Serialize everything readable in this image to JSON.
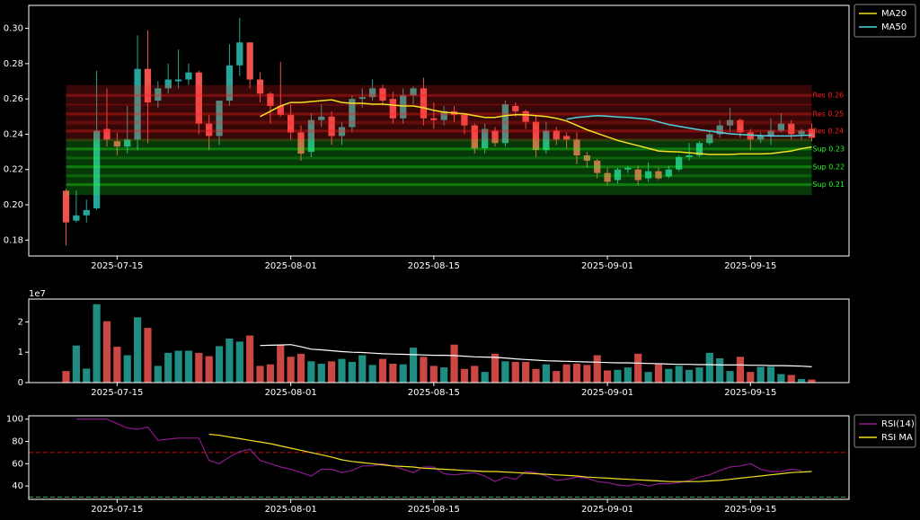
{
  "chart_data": [
    {
      "type": "candlestick",
      "x": [
        "2025-07-10",
        "2025-07-11",
        "2025-07-12",
        "2025-07-13",
        "2025-07-14",
        "2025-07-15",
        "2025-07-16",
        "2025-07-17",
        "2025-07-18",
        "2025-07-19",
        "2025-07-20",
        "2025-07-21",
        "2025-07-22",
        "2025-07-23",
        "2025-07-24",
        "2025-07-25",
        "2025-07-26",
        "2025-07-27",
        "2025-07-28",
        "2025-07-29",
        "2025-07-30",
        "2025-07-31",
        "2025-08-01",
        "2025-08-02",
        "2025-08-03",
        "2025-08-04",
        "2025-08-05",
        "2025-08-06",
        "2025-08-07",
        "2025-08-08",
        "2025-08-09",
        "2025-08-10",
        "2025-08-11",
        "2025-08-12",
        "2025-08-13",
        "2025-08-14",
        "2025-08-15",
        "2025-08-16",
        "2025-08-17",
        "2025-08-18",
        "2025-08-19",
        "2025-08-20",
        "2025-08-21",
        "2025-08-22",
        "2025-08-23",
        "2025-08-24",
        "2025-08-25",
        "2025-08-26",
        "2025-08-27",
        "2025-08-28",
        "2025-08-29",
        "2025-08-30",
        "2025-08-31",
        "2025-09-01",
        "2025-09-02",
        "2025-09-03",
        "2025-09-04",
        "2025-09-05",
        "2025-09-06",
        "2025-09-07",
        "2025-09-08",
        "2025-09-09",
        "2025-09-10",
        "2025-09-11",
        "2025-09-12",
        "2025-09-13",
        "2025-09-14",
        "2025-09-15",
        "2025-09-16",
        "2025-09-17",
        "2025-09-18",
        "2025-09-19",
        "2025-09-20",
        "2025-09-21"
      ],
      "open": [
        0.208,
        0.191,
        0.194,
        0.198,
        0.243,
        0.236,
        0.233,
        0.237,
        0.277,
        0.259,
        0.266,
        0.27,
        0.271,
        0.275,
        0.246,
        0.239,
        0.259,
        0.279,
        0.292,
        0.271,
        0.263,
        0.256,
        0.251,
        0.241,
        0.23,
        0.248,
        0.25,
        0.239,
        0.244,
        0.26,
        0.261,
        0.266,
        0.26,
        0.249,
        0.262,
        0.266,
        0.249,
        0.248,
        0.253,
        0.251,
        0.245,
        0.232,
        0.242,
        0.235,
        0.256,
        0.253,
        0.247,
        0.231,
        0.242,
        0.239,
        0.237,
        0.228,
        0.225,
        0.218,
        0.214,
        0.22,
        0.22,
        0.215,
        0.219,
        0.216,
        0.22,
        0.227,
        0.228,
        0.235,
        0.24,
        0.245,
        0.248,
        0.241,
        0.237,
        0.239,
        0.242,
        0.246,
        0.24,
        0.243
      ],
      "high": [
        0.209,
        0.208,
        0.203,
        0.276,
        0.266,
        0.241,
        0.256,
        0.296,
        0.299,
        0.27,
        0.28,
        0.288,
        0.28,
        0.276,
        0.251,
        0.259,
        0.291,
        0.306,
        0.292,
        0.275,
        0.264,
        0.281,
        0.257,
        0.245,
        0.252,
        0.257,
        0.253,
        0.247,
        0.262,
        0.266,
        0.271,
        0.268,
        0.264,
        0.266,
        0.267,
        0.272,
        0.258,
        0.256,
        0.256,
        0.252,
        0.246,
        0.246,
        0.244,
        0.259,
        0.258,
        0.254,
        0.251,
        0.247,
        0.244,
        0.241,
        0.241,
        0.23,
        0.226,
        0.221,
        0.221,
        0.222,
        0.222,
        0.224,
        0.221,
        0.222,
        0.228,
        0.235,
        0.236,
        0.242,
        0.248,
        0.255,
        0.249,
        0.243,
        0.241,
        0.249,
        0.252,
        0.248,
        0.243,
        0.246
      ],
      "low": [
        0.177,
        0.19,
        0.19,
        0.197,
        0.233,
        0.228,
        0.229,
        0.231,
        0.235,
        0.255,
        0.263,
        0.266,
        0.268,
        0.24,
        0.231,
        0.234,
        0.256,
        0.273,
        0.266,
        0.258,
        0.246,
        0.25,
        0.237,
        0.225,
        0.227,
        0.244,
        0.234,
        0.234,
        0.241,
        0.255,
        0.259,
        0.257,
        0.246,
        0.246,
        0.257,
        0.245,
        0.243,
        0.245,
        0.247,
        0.24,
        0.229,
        0.229,
        0.233,
        0.233,
        0.25,
        0.243,
        0.227,
        0.229,
        0.234,
        0.232,
        0.223,
        0.221,
        0.215,
        0.211,
        0.212,
        0.218,
        0.211,
        0.213,
        0.214,
        0.215,
        0.219,
        0.225,
        0.227,
        0.234,
        0.238,
        0.241,
        0.238,
        0.231,
        0.235,
        0.234,
        0.241,
        0.237,
        0.237,
        0.236
      ],
      "close": [
        0.19,
        0.194,
        0.197,
        0.242,
        0.237,
        0.233,
        0.237,
        0.277,
        0.258,
        0.266,
        0.271,
        0.271,
        0.275,
        0.246,
        0.239,
        0.259,
        0.279,
        0.292,
        0.271,
        0.263,
        0.256,
        0.251,
        0.241,
        0.229,
        0.248,
        0.25,
        0.239,
        0.244,
        0.26,
        0.261,
        0.266,
        0.259,
        0.249,
        0.262,
        0.266,
        0.249,
        0.248,
        0.253,
        0.251,
        0.245,
        0.232,
        0.243,
        0.235,
        0.257,
        0.253,
        0.247,
        0.231,
        0.242,
        0.237,
        0.237,
        0.228,
        0.225,
        0.218,
        0.213,
        0.22,
        0.221,
        0.214,
        0.219,
        0.215,
        0.22,
        0.227,
        0.228,
        0.235,
        0.24,
        0.245,
        0.248,
        0.241,
        0.237,
        0.239,
        0.242,
        0.246,
        0.24,
        0.242,
        0.238
      ],
      "up_color": "#26a69a",
      "down_color": "#ef5350",
      "series": [
        {
          "name": "MA20",
          "color": "#f2e224",
          "values": [
            null,
            null,
            null,
            null,
            null,
            null,
            null,
            null,
            null,
            null,
            null,
            null,
            null,
            null,
            null,
            null,
            null,
            null,
            null,
            0.25,
            0.253,
            0.256,
            0.258,
            0.258,
            0.2585,
            0.259,
            0.2595,
            0.258,
            0.2575,
            0.2575,
            0.257,
            0.257,
            0.2565,
            0.256,
            0.256,
            0.255,
            0.2535,
            0.2525,
            0.252,
            0.2515,
            0.2505,
            0.2495,
            0.2495,
            0.2505,
            0.251,
            0.251,
            0.2505,
            0.25,
            0.249,
            0.2475,
            0.245,
            0.2425,
            0.2405,
            0.2385,
            0.2365,
            0.235,
            0.2335,
            0.232,
            0.2305,
            0.2302,
            0.23,
            0.2295,
            0.229,
            0.2285,
            0.2285,
            0.2285,
            0.2288,
            0.2288,
            0.2288,
            0.229,
            0.2298,
            0.2305,
            0.2318,
            0.2328
          ]
        },
        {
          "name": "MA50",
          "color": "#4fd2e0",
          "values": [
            null,
            null,
            null,
            null,
            null,
            null,
            null,
            null,
            null,
            null,
            null,
            null,
            null,
            null,
            null,
            null,
            null,
            null,
            null,
            null,
            null,
            null,
            null,
            null,
            null,
            null,
            null,
            null,
            null,
            null,
            null,
            null,
            null,
            null,
            null,
            null,
            null,
            null,
            null,
            null,
            null,
            null,
            null,
            null,
            null,
            null,
            null,
            null,
            null,
            0.2485,
            0.2495,
            0.25,
            0.2505,
            0.2502,
            0.2498,
            0.2495,
            0.249,
            0.2485,
            0.247,
            0.2455,
            0.2445,
            0.2435,
            0.2425,
            0.2418,
            0.241,
            0.2402,
            0.2398,
            0.2395,
            0.2392,
            0.239,
            0.239,
            0.239,
            0.2393,
            0.2395
          ]
        }
      ],
      "levels": [
        {
          "value": 0.262,
          "label": "Res 0.26",
          "color": "#ff2020"
        },
        {
          "value": 0.2514,
          "label": "Res 0.25",
          "color": "#ff2020"
        },
        {
          "value": 0.2418,
          "label": "Res 0.24",
          "color": "#ff2020"
        },
        {
          "value": 0.2316,
          "label": "Sup 0.23",
          "color": "#20ff20"
        },
        {
          "value": 0.2215,
          "label": "Sup 0.22",
          "color": "#20ff20"
        },
        {
          "value": 0.2114,
          "label": "Sup 0.21",
          "color": "#20ff20"
        }
      ],
      "ylim": [
        0.171,
        0.313
      ],
      "yticks": [
        0.18,
        {
          "value": 0.2,
          "label": "0.20"
        },
        0.22,
        0.24,
        0.26,
        0.28,
        {
          "value": 0.3,
          "label": "0.30"
        }
      ],
      "xticks": [
        "2025-07-15",
        "2025-08-01",
        "2025-08-15",
        "2025-09-01",
        "2025-09-15"
      ],
      "legend": "outside-upper-right"
    },
    {
      "type": "bar",
      "values": [
        3800000,
        12200000,
        4600000,
        25800000,
        20200000,
        11800000,
        9000000,
        21500000,
        18000000,
        5500000,
        9800000,
        10500000,
        10500000,
        9800000,
        8700000,
        12000000,
        14500000,
        13500000,
        15500000,
        5500000,
        6000000,
        12500000,
        8500000,
        9500000,
        7000000,
        6200000,
        7000000,
        7800000,
        6800000,
        9000000,
        5800000,
        7800000,
        6200000,
        6000000,
        11500000,
        8500000,
        5500000,
        5000000,
        12500000,
        4500000,
        5500000,
        3500000,
        9500000,
        7000000,
        6800000,
        6800000,
        4500000,
        6000000,
        3800000,
        6000000,
        6200000,
        5800000,
        9000000,
        4000000,
        4200000,
        5000000,
        9500000,
        3500000,
        6000000,
        4500000,
        5500000,
        4200000,
        5000000,
        9800000,
        8000000,
        3800000,
        8500000,
        3500000,
        5200000,
        5200000,
        2800000,
        2500000,
        1200000,
        1000000
      ],
      "series": [
        {
          "color": "#ffffff",
          "values": [
            null,
            null,
            null,
            null,
            null,
            null,
            null,
            null,
            null,
            null,
            null,
            null,
            null,
            null,
            null,
            null,
            null,
            null,
            null,
            12200000,
            12300000,
            12400000,
            12500000,
            11800000,
            11000000,
            10800000,
            10500000,
            10200000,
            10000000,
            9900000,
            9700000,
            9500000,
            9400000,
            9300000,
            9200000,
            9100000,
            9000000,
            9000000,
            8900000,
            8700000,
            8500000,
            8400000,
            8300000,
            8100000,
            7800000,
            7600000,
            7400000,
            7200000,
            7100000,
            7000000,
            6900000,
            6800000,
            6700000,
            6600000,
            6500000,
            6500000,
            6400000,
            6300000,
            6200000,
            6100000,
            6000000,
            6000000,
            5900000,
            5900000,
            5800000,
            5800000,
            5800000,
            5700000,
            5700000,
            5600000,
            5600000,
            5500000,
            5400000,
            5200000
          ]
        }
      ],
      "ylim": [
        0,
        27500000
      ],
      "yticks": [
        0,
        {
          "value": 10000000,
          "label": "1"
        },
        {
          "value": 20000000,
          "label": "2"
        }
      ],
      "offset_label": "1e7",
      "xticks": [
        "2025-07-15",
        "2025-08-01",
        "2025-08-15",
        "2025-09-01",
        "2025-09-15"
      ]
    },
    {
      "type": "line",
      "series": [
        {
          "name": "RSI(14)",
          "color": "#8b1a8b",
          "values": [
            null,
            100,
            100,
            100,
            100,
            96,
            92,
            91,
            93,
            81,
            82,
            83,
            83,
            83,
            63,
            60,
            66,
            71,
            73,
            63,
            60,
            57,
            55,
            52,
            49,
            55,
            55,
            52,
            54,
            58,
            58,
            60,
            58,
            55,
            52,
            57,
            57,
            51,
            50,
            51,
            52,
            49,
            44,
            48,
            46,
            53,
            52,
            49,
            45,
            46,
            48,
            47,
            44,
            43,
            41,
            40,
            42,
            40,
            42,
            42,
            43,
            45,
            48,
            50,
            54,
            57,
            58,
            60,
            55,
            53,
            53,
            55,
            54,
            null
          ]
        },
        {
          "name": "RSI MA",
          "color": "#f2e224",
          "values": [
            null,
            null,
            null,
            null,
            null,
            null,
            null,
            null,
            null,
            null,
            null,
            null,
            null,
            null,
            86.5,
            85.5,
            84,
            82.5,
            81,
            79.5,
            78,
            76,
            74,
            72,
            70,
            68,
            66,
            63.5,
            62,
            61,
            60,
            59,
            58,
            57.5,
            57,
            56,
            55.5,
            55,
            54.5,
            54,
            53.5,
            53,
            53,
            52.5,
            52,
            51.5,
            51,
            50.5,
            50,
            49.5,
            49,
            48,
            47.5,
            47,
            46.5,
            46,
            45.5,
            45,
            44.5,
            44,
            44,
            44,
            44,
            44.5,
            45,
            46,
            47,
            48,
            49,
            50,
            51,
            52,
            52.5,
            53
          ]
        }
      ],
      "hlines": [
        {
          "value": 70,
          "color": "#cc1111"
        },
        {
          "value": 30,
          "color": "#22aa55"
        }
      ],
      "ylim": [
        28,
        103
      ],
      "yticks": [
        40,
        60,
        80,
        100
      ],
      "xticks": [
        "2025-07-15",
        "2025-08-01",
        "2025-08-15",
        "2025-09-01",
        "2025-09-15"
      ],
      "legend": "outside-upper-right"
    }
  ]
}
